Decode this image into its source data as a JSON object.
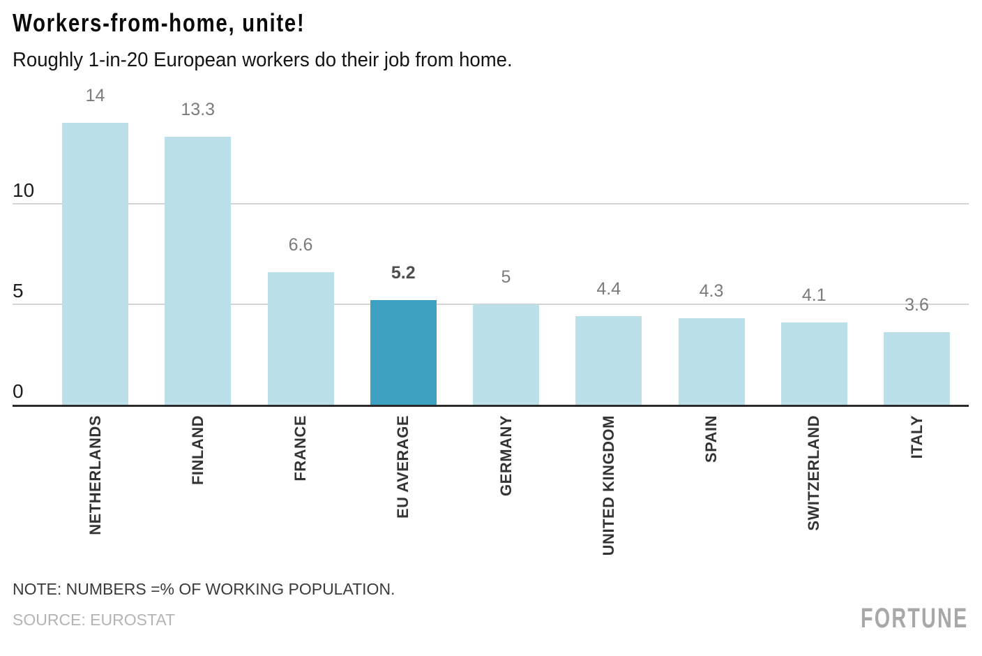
{
  "header": {
    "title": "Workers-from-home, unite!",
    "subtitle": "Roughly 1-in-20 European workers do their job from home."
  },
  "chart_data": {
    "type": "bar",
    "title": "Workers-from-home, unite!",
    "subtitle": "Roughly 1-in-20 European workers do their job from home.",
    "categories": [
      "NETHERLANDS",
      "FINLAND",
      "FRANCE",
      "EU AVERAGE",
      "GERMANY",
      "UNITED KINGDOM",
      "SPAIN",
      "SWITZERLAND",
      "ITALY"
    ],
    "values": [
      14,
      13.3,
      6.6,
      5.2,
      5,
      4.4,
      4.3,
      4.1,
      3.6
    ],
    "value_labels": [
      "14",
      "13.3",
      "6.6",
      "5.2",
      "5",
      "4.4",
      "4.3",
      "4.1",
      "3.6"
    ],
    "highlight_index": 3,
    "highlight_category": "EU AVERAGE",
    "unit": "% of working population",
    "yticks": [
      0,
      5,
      10
    ],
    "ytick_labels": [
      "0",
      "5",
      "10"
    ],
    "ylim": [
      0,
      15
    ],
    "grid": "horizontal",
    "legend": "none",
    "colors": {
      "bar": "#bce0ea",
      "highlight": "#3da2c2",
      "gridline": "#d4d4d4",
      "baseline": "#2b2b2b",
      "value_label": "#7b7b7b",
      "value_label_highlight": "#4e4e4e",
      "category_label": "#333333"
    }
  },
  "footer": {
    "note": "NOTE: NUMBERS =% OF WORKING POPULATION.",
    "source": "SOURCE: EUROSTAT",
    "brand": "FORTUNE"
  }
}
